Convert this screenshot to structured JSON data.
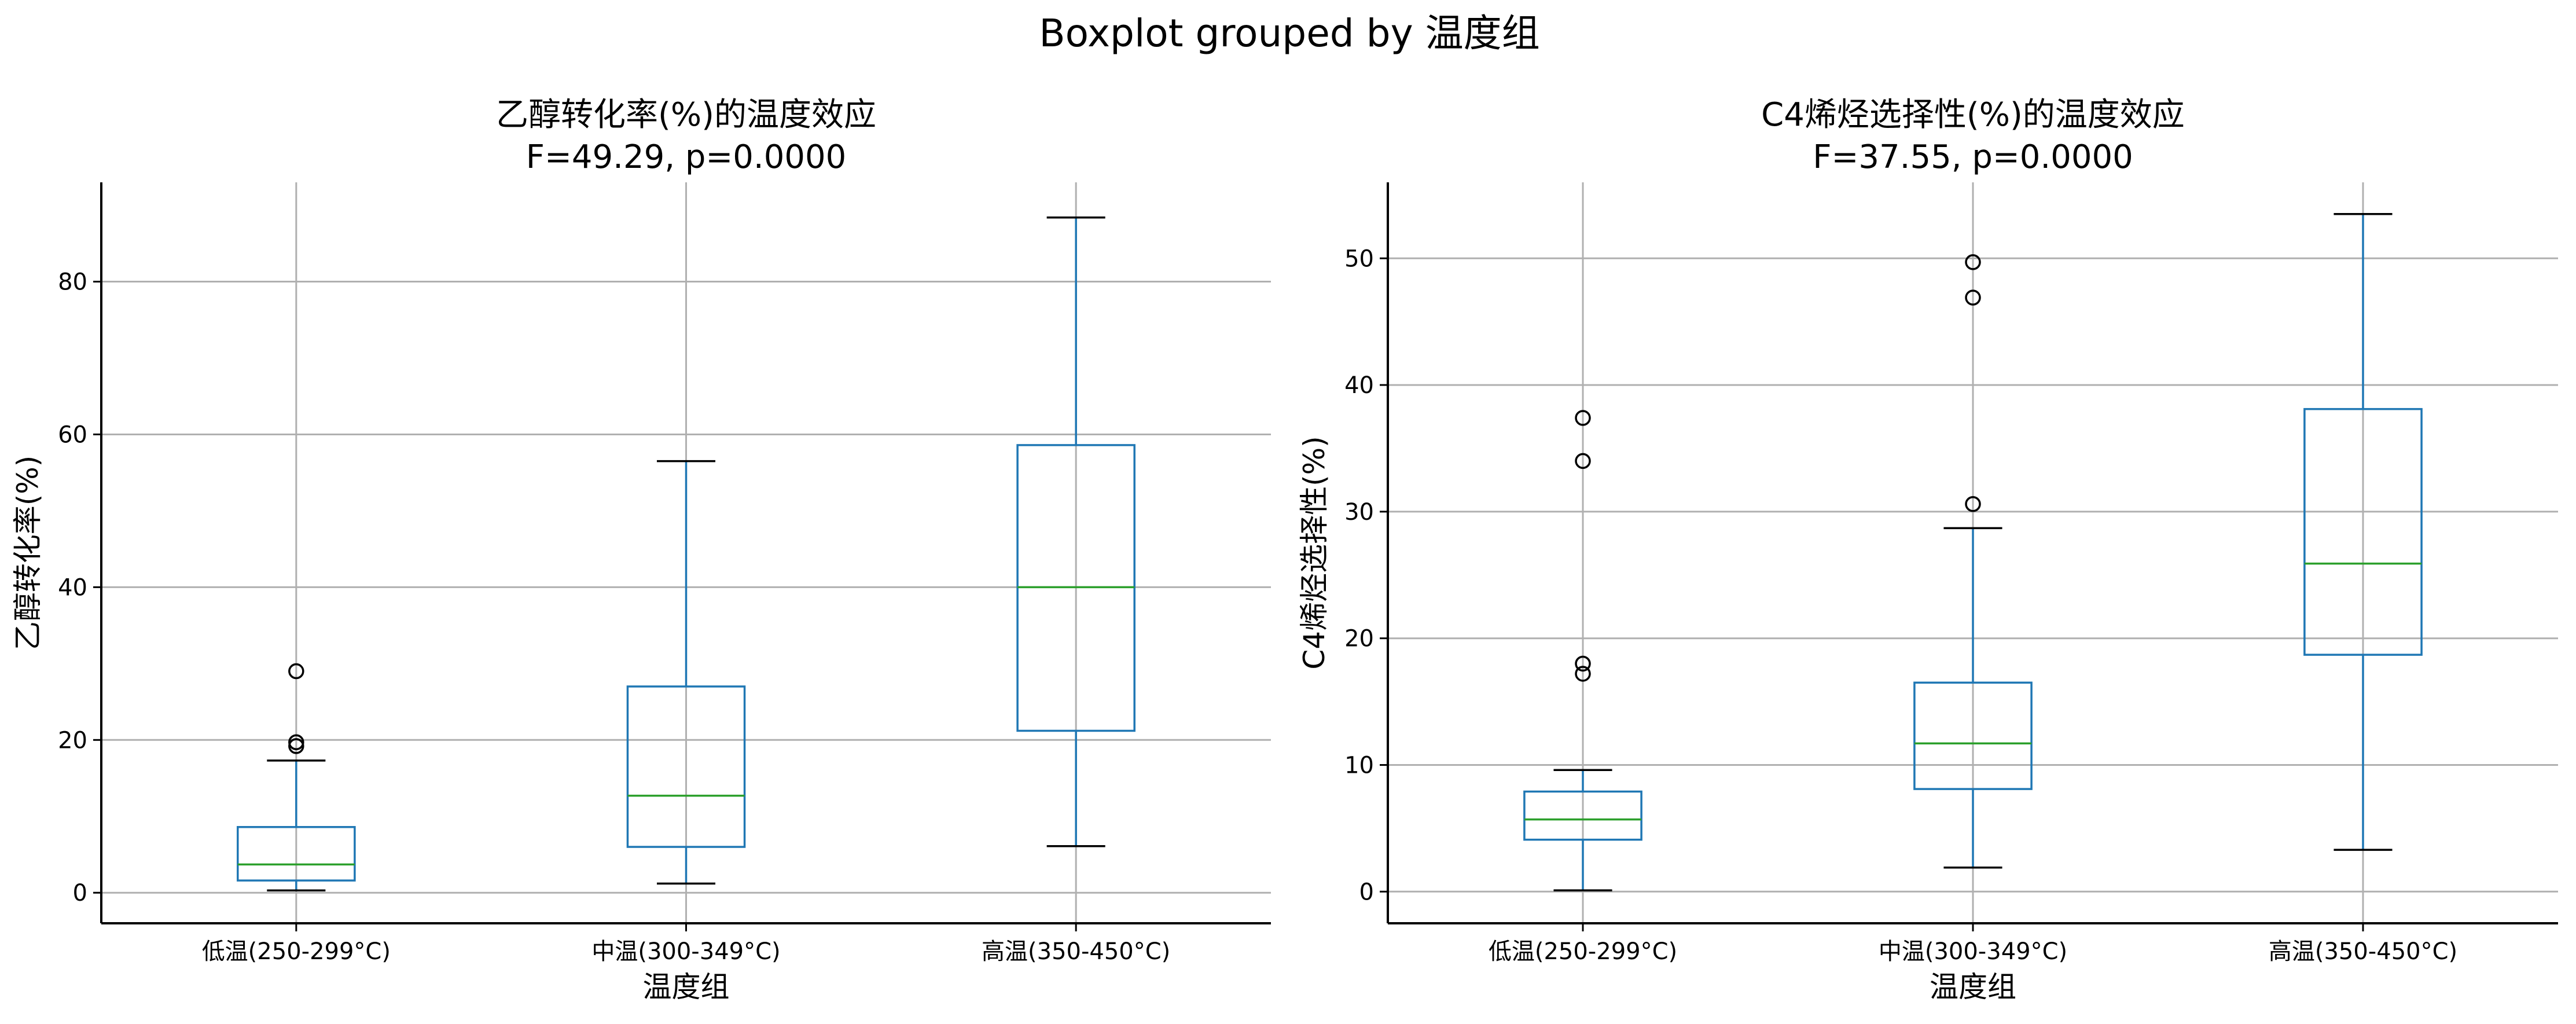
{
  "suptitle": "Boxplot grouped by 温度组",
  "colors": {
    "box": "#1f77b4",
    "median": "#2ca02c",
    "grid": "#b0b0b0",
    "axis": "#000000",
    "flier": "#000000"
  },
  "chart_data": [
    {
      "type": "box",
      "title": "乙醇转化率(%)的温度效应",
      "subtitle": "F=49.29, p=0.0000",
      "xlabel": "温度组",
      "ylabel": "乙醇转化率(%)",
      "categories": [
        "低温(250-299°C)",
        "中温(300-349°C)",
        "高温(350-450°C)"
      ],
      "ylim": [
        -4,
        93
      ],
      "yticks": [
        0,
        20,
        40,
        60,
        80
      ],
      "grid": true,
      "boxes": [
        {
          "whislo": 0.3,
          "q1": 1.6,
          "med": 3.7,
          "q3": 8.6,
          "whishi": 17.3,
          "fliers": [
            19.2,
            19.7,
            29.0
          ]
        },
        {
          "whislo": 1.2,
          "q1": 6.0,
          "med": 12.7,
          "q3": 27.0,
          "whishi": 56.5,
          "fliers": []
        },
        {
          "whislo": 6.1,
          "q1": 21.2,
          "med": 40.0,
          "q3": 58.6,
          "whishi": 88.4,
          "fliers": []
        }
      ]
    },
    {
      "type": "box",
      "title": "C4烯烃选择性(%)的温度效应",
      "subtitle": "F=37.55, p=0.0000",
      "xlabel": "温度组",
      "ylabel": "C4烯烃选择性(%)",
      "categories": [
        "低温(250-299°C)",
        "中温(300-349°C)",
        "高温(350-450°C)"
      ],
      "ylim": [
        -2.5,
        56
      ],
      "yticks": [
        0,
        10,
        20,
        30,
        40,
        50
      ],
      "grid": true,
      "boxes": [
        {
          "whislo": 0.1,
          "q1": 4.1,
          "med": 5.7,
          "q3": 7.9,
          "whishi": 9.6,
          "fliers": [
            17.2,
            18.0,
            34.0,
            37.4
          ]
        },
        {
          "whislo": 1.9,
          "q1": 8.1,
          "med": 11.7,
          "q3": 16.5,
          "whishi": 28.7,
          "fliers": [
            30.6,
            46.9,
            49.7
          ]
        },
        {
          "whislo": 3.3,
          "q1": 18.7,
          "med": 25.9,
          "q3": 38.1,
          "whishi": 53.5,
          "fliers": []
        }
      ]
    }
  ]
}
